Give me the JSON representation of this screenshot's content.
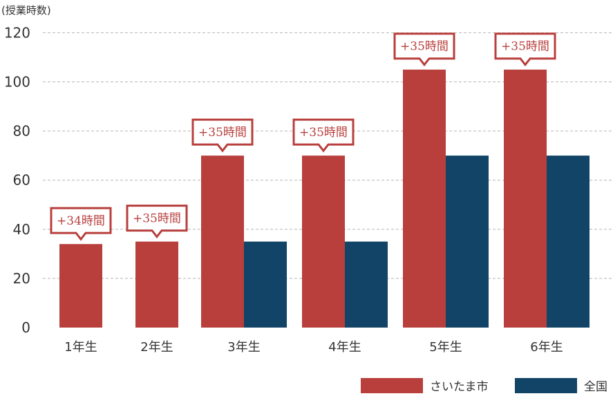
{
  "chart_data": {
    "type": "bar",
    "ylabel": "(授業時数)",
    "ylim": [
      0,
      120
    ],
    "yticks": [
      0,
      20,
      40,
      60,
      80,
      100,
      120
    ],
    "grid": "dashed-horizontal",
    "legend_position": "bottom-right",
    "categories": [
      "1年生",
      "2年生",
      "3年生",
      "4年生",
      "5年生",
      "6年生"
    ],
    "series": [
      {
        "name": "さいたま市",
        "color": "#b83f3c",
        "values": [
          34,
          35,
          70,
          70,
          105,
          105
        ]
      },
      {
        "name": "全国",
        "color": "#114466",
        "values": [
          null,
          null,
          35,
          35,
          70,
          70
        ]
      }
    ],
    "annotations": [
      "+34時間",
      "+35時間",
      "+35時間",
      "+35時間",
      "+35時間",
      "+35時間"
    ]
  }
}
